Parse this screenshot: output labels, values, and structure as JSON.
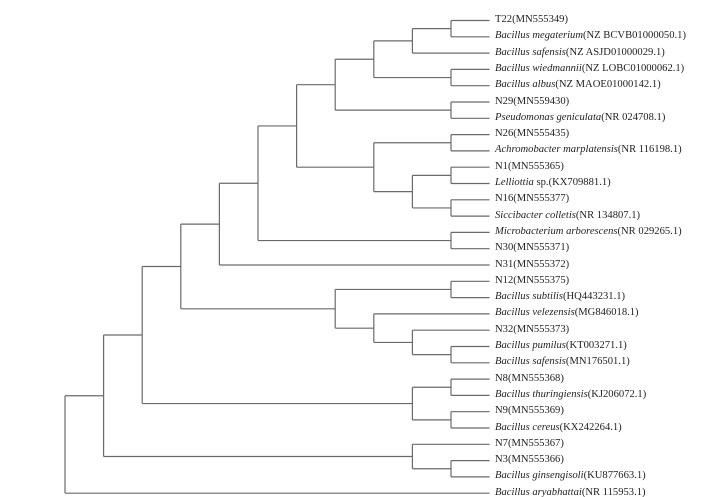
{
  "leaves": [
    {
      "italic": "",
      "plain": "T22",
      "acc": "(MN555349)"
    },
    {
      "italic": "Bacillus megaterium",
      "plain": "",
      "acc": "(NZ BCVB01000050.1)"
    },
    {
      "italic": "Bacillus safensis",
      "plain": "",
      "acc": "(NZ ASJD01000029.1)"
    },
    {
      "italic": "Bacillus wiedmannii",
      "plain": "",
      "acc": "(NZ LOBC01000062.1)"
    },
    {
      "italic": "Bacillus albus",
      "plain": "",
      "acc": "(NZ MAOE01000142.1)"
    },
    {
      "italic": "",
      "plain": "N29",
      "acc": "(MN559430)"
    },
    {
      "italic": "Pseudomonas geniculata",
      "plain": "",
      "acc": "(NR 024708.1)"
    },
    {
      "italic": "",
      "plain": "N26",
      "acc": "(MN555435)"
    },
    {
      "italic": "Achromobacter marplatensis",
      "plain": "",
      "acc": "(NR 116198.1)"
    },
    {
      "italic": "",
      "plain": "N1",
      "acc": "(MN555365)"
    },
    {
      "italic": "Lelliottia",
      "plain": " sp.",
      "acc": "(KX709881.1)"
    },
    {
      "italic": "",
      "plain": "N16",
      "acc": "(MN555377)"
    },
    {
      "italic": "Siccibacter colletis",
      "plain": "",
      "acc": "(NR 134807.1)"
    },
    {
      "italic": "Microbacterium arborescens",
      "plain": "",
      "acc": "(NR 029265.1)"
    },
    {
      "italic": "",
      "plain": "N30",
      "acc": "(MN555371)"
    },
    {
      "italic": "",
      "plain": "N31",
      "acc": "(MN555372)"
    },
    {
      "italic": "",
      "plain": "N12",
      "acc": "(MN555375)"
    },
    {
      "italic": "Bacillus subtilis",
      "plain": "",
      "acc": "(HQ443231.1)"
    },
    {
      "italic": "Bacillus velezensis",
      "plain": "",
      "acc": "(MG846018.1)"
    },
    {
      "italic": "",
      "plain": "N32",
      "acc": "(MN555373)"
    },
    {
      "italic": "Bacillus pumilus",
      "plain": "",
      "acc": "(KT003271.1)"
    },
    {
      "italic": "Bacillus safensis",
      "plain": "",
      "acc": "(MN176501.1)"
    },
    {
      "italic": "",
      "plain": "N8",
      "acc": "(MN555368)"
    },
    {
      "italic": "Bacillus thuringiensis",
      "plain": "",
      "acc": "(KJ206072.1)"
    },
    {
      "italic": "",
      "plain": "N9",
      "acc": "(MN555369)"
    },
    {
      "italic": "Bacillus cereus",
      "plain": "",
      "acc": "(KX242264.1)"
    },
    {
      "italic": "",
      "plain": "N7",
      "acc": "(MN555367)"
    },
    {
      "italic": "",
      "plain": "N3",
      "acc": "(MN555366)"
    },
    {
      "italic": "Bacillus ginsengisoli",
      "plain": "",
      "acc": "(KU877663.1)"
    },
    {
      "italic": "Bacillus aryabhattai",
      "plain": "",
      "acc": "(NR 115953.1)"
    }
  ],
  "tree": {
    "h": 0,
    "c": [
      {
        "h": 1,
        "c": [
          {
            "h": 2,
            "c": [
              {
                "h": 3,
                "c": [
                  {
                    "h": 4,
                    "c": [
                      {
                        "h": 5,
                        "c": [
                          {
                            "h": 6,
                            "c": [
                              {
                                "h": 7,
                                "c": [
                                  {
                                    "h": 8,
                                    "c": [
                                      {
                                        "h": 9,
                                        "c": [
                                          {
                                            "h": 10,
                                            "c": [
                                              0,
                                              1
                                            ]
                                          },
                                          2
                                        ]
                                      },
                                      {
                                        "h": 10,
                                        "c": [
                                          3,
                                          4
                                        ]
                                      }
                                    ]
                                  },
                                  {
                                    "h": 10,
                                    "c": [
                                      5,
                                      6
                                    ]
                                  }
                                ]
                              },
                              {
                                "h": 8,
                                "c": [
                                  {
                                    "h": 10,
                                    "c": [
                                      7,
                                      8
                                    ]
                                  },
                                  {
                                    "h": 9,
                                    "c": [
                                      {
                                        "h": 10,
                                        "c": [
                                          9,
                                          10
                                        ]
                                      },
                                      {
                                        "h": 10,
                                        "c": [
                                          11,
                                          12
                                        ]
                                      }
                                    ]
                                  }
                                ]
                              }
                            ]
                          },
                          {
                            "h": 10,
                            "c": [
                              13,
                              14
                            ]
                          }
                        ]
                      },
                      15
                    ]
                  },
                  {
                    "h": 7,
                    "c": [
                      {
                        "h": 10,
                        "c": [
                          16,
                          17
                        ]
                      },
                      {
                        "h": 8,
                        "c": [
                          18,
                          {
                            "h": 9,
                            "c": [
                              19,
                              {
                                "h": 10,
                                "c": [
                                  20,
                                  21
                                ]
                              }
                            ]
                          }
                        ]
                      }
                    ]
                  }
                ]
              },
              {
                "h": 9,
                "c": [
                  {
                    "h": 10,
                    "c": [
                      22,
                      23
                    ]
                  },
                  {
                    "h": 10,
                    "c": [
                      24,
                      25
                    ]
                  }
                ]
              }
            ]
          },
          {
            "h": 9,
            "c": [
              26,
              {
                "h": 10,
                "c": [
                  27,
                  28
                ]
              }
            ]
          }
        ]
      },
      29
    ]
  },
  "colors": {
    "branch": "#6a6a6a",
    "text": "#222222"
  }
}
